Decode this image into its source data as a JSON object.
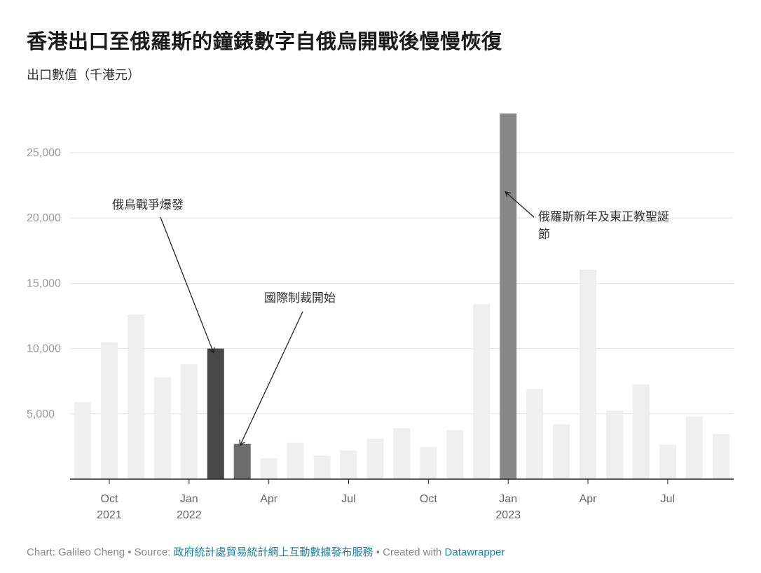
{
  "title": "香港出口至俄羅斯的鐘錶數字自俄烏開戰後慢慢恢復",
  "subtitle": "出口數值（千港元）",
  "footer": {
    "chart_prefix": "Chart: Galileo Cheng • Source: ",
    "source": "政府統計處貿易統計網上互動數據發布服務",
    "created_prefix": " • Created with ",
    "tool": "Datawrapper"
  },
  "colors": {
    "bar_default": "#efefef",
    "bar_war": "#484848",
    "bar_sanctions": "#6c6c6c",
    "bar_holiday": "#888888",
    "grid": "#e3e3e3",
    "axis": "#222222"
  },
  "chart_data": {
    "type": "bar",
    "ylim": [
      0,
      28000
    ],
    "yticks": [
      {
        "value": 5000,
        "label": "5,000"
      },
      {
        "value": 10000,
        "label": "10,000"
      },
      {
        "value": 15000,
        "label": "15,000"
      },
      {
        "value": 20000,
        "label": "20,000"
      },
      {
        "value": 25000,
        "label": "25,000"
      }
    ],
    "xticks": [
      {
        "index": 1,
        "line1": "Oct",
        "line2": "2021"
      },
      {
        "index": 4,
        "line1": "Jan",
        "line2": "2022"
      },
      {
        "index": 7,
        "line1": "Apr",
        "line2": ""
      },
      {
        "index": 10,
        "line1": "Jul",
        "line2": ""
      },
      {
        "index": 13,
        "line1": "Oct",
        "line2": ""
      },
      {
        "index": 16,
        "line1": "Jan",
        "line2": "2023"
      },
      {
        "index": 19,
        "line1": "Apr",
        "line2": ""
      },
      {
        "index": 22,
        "line1": "Jul",
        "line2": ""
      }
    ],
    "categories": [
      "2021-09",
      "2021-10",
      "2021-11",
      "2021-12",
      "2022-01",
      "2022-02",
      "2022-03",
      "2022-04",
      "2022-05",
      "2022-06",
      "2022-07",
      "2022-08",
      "2022-09",
      "2022-10",
      "2022-11",
      "2022-12",
      "2023-01",
      "2023-02",
      "2023-03",
      "2023-04",
      "2023-05",
      "2023-06",
      "2023-07",
      "2023-08",
      "2023-09"
    ],
    "values": [
      5900,
      10500,
      12600,
      7800,
      8800,
      10000,
      2700,
      1600,
      2800,
      1800,
      2200,
      3100,
      3900,
      2450,
      3750,
      13400,
      28000,
      6900,
      4200,
      16050,
      5250,
      7250,
      2650,
      4800,
      3450
    ],
    "highlights": {
      "5": "bar_war",
      "6": "bar_sanctions",
      "16": "bar_holiday"
    },
    "annotations": [
      {
        "lines": [
          "俄烏戰爭爆發"
        ],
        "target_index": 5
      },
      {
        "lines": [
          "國際制裁開始"
        ],
        "target_index": 6
      },
      {
        "lines": [
          "俄羅斯新年及東正教聖誕",
          "節"
        ],
        "target_index": 16
      }
    ]
  }
}
